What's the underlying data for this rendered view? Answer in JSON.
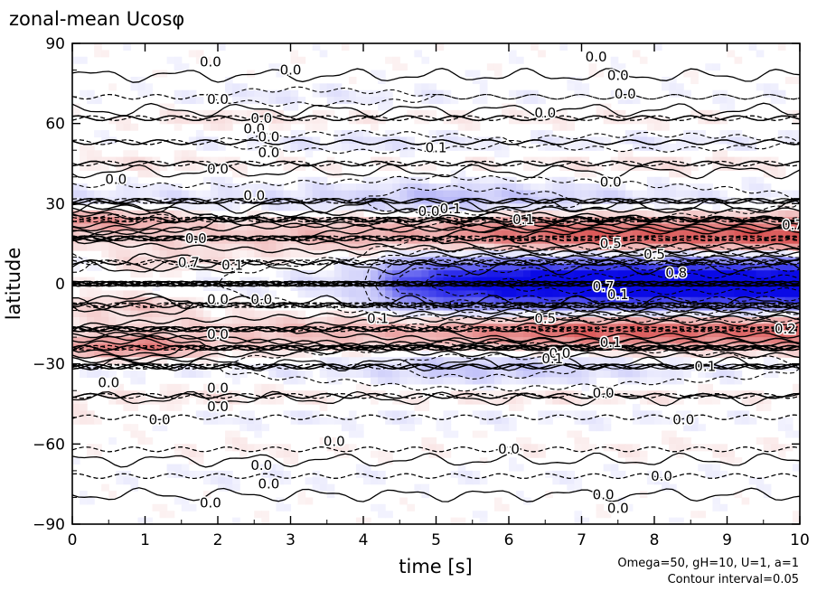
{
  "chart_data": {
    "type": "heatmap",
    "title": "zonal-mean Ucosφ",
    "xlabel": "time [s]",
    "ylabel": "latitude",
    "xlim": [
      0,
      10
    ],
    "ylim": [
      -90,
      90
    ],
    "x_ticks": [
      "0",
      "1",
      "2",
      "3",
      "4",
      "5",
      "6",
      "7",
      "8",
      "9",
      "10"
    ],
    "y_ticks": [
      "−90",
      "−60",
      "−30",
      "0",
      "30",
      "60",
      "90"
    ],
    "annotations": [
      "Omega=50, gH=10, U=1, a=1",
      "Contour interval=0.05"
    ],
    "contour_interval": 0.05,
    "colors": {
      "positive": "#d03030",
      "negative": "#1010e0",
      "zero": "#ffffff",
      "contour": "#000000"
    },
    "bands": [
      {
        "lat": 0,
        "width": 7,
        "values": [
          {
            "t": 0,
            "v": 0.02
          },
          {
            "t": 2,
            "v": -0.05
          },
          {
            "t": 3,
            "v": -0.08
          },
          {
            "t": 4,
            "v": -0.15
          },
          {
            "t": 4.5,
            "v": -0.55
          },
          {
            "t": 5,
            "v": -0.75
          },
          {
            "t": 6,
            "v": -0.92
          },
          {
            "t": 7,
            "v": -0.98
          },
          {
            "t": 8,
            "v": -1.0
          },
          {
            "t": 9,
            "v": -0.98
          },
          {
            "t": 10,
            "v": -0.95
          }
        ]
      },
      {
        "lat": 17,
        "width": 4,
        "values": [
          {
            "t": 0,
            "v": 0.1
          },
          {
            "t": 2,
            "v": 0.15
          },
          {
            "t": 3,
            "v": 0.2
          },
          {
            "t": 4,
            "v": 0.25
          },
          {
            "t": 5,
            "v": 0.3
          },
          {
            "t": 6,
            "v": 0.45
          },
          {
            "t": 7,
            "v": 0.55
          },
          {
            "t": 8,
            "v": 0.55
          },
          {
            "t": 9,
            "v": 0.55
          },
          {
            "t": 10,
            "v": 0.6
          }
        ]
      },
      {
        "lat": -17,
        "width": 4,
        "values": [
          {
            "t": 0,
            "v": 0.1
          },
          {
            "t": 2,
            "v": 0.15
          },
          {
            "t": 3,
            "v": 0.2
          },
          {
            "t": 4,
            "v": 0.25
          },
          {
            "t": 5,
            "v": 0.3
          },
          {
            "t": 6,
            "v": 0.45
          },
          {
            "t": 7,
            "v": 0.55
          },
          {
            "t": 8,
            "v": 0.55
          },
          {
            "t": 9,
            "v": 0.5
          },
          {
            "t": 10,
            "v": 0.55
          }
        ]
      },
      {
        "lat": 24,
        "width": 3,
        "values": [
          {
            "t": 0,
            "v": 0.4
          },
          {
            "t": 1,
            "v": 0.3
          },
          {
            "t": 2,
            "v": 0.1
          },
          {
            "t": 4,
            "v": 0.15
          },
          {
            "t": 6,
            "v": 0.25
          },
          {
            "t": 8,
            "v": 0.2
          },
          {
            "t": 10,
            "v": 0.2
          }
        ]
      },
      {
        "lat": -24,
        "width": 3,
        "values": [
          {
            "t": 0,
            "v": 0.3
          },
          {
            "t": 1,
            "v": 0.45
          },
          {
            "t": 2,
            "v": 0.15
          },
          {
            "t": 4,
            "v": 0.1
          },
          {
            "t": 6,
            "v": 0.15
          },
          {
            "t": 8,
            "v": 0.15
          },
          {
            "t": 10,
            "v": 0.15
          }
        ]
      },
      {
        "lat": 31,
        "width": 5,
        "values": [
          {
            "t": 0,
            "v": -0.1
          },
          {
            "t": 2,
            "v": -0.1
          },
          {
            "t": 4,
            "v": -0.15
          },
          {
            "t": 5,
            "v": -0.25
          },
          {
            "t": 6,
            "v": -0.2
          },
          {
            "t": 8,
            "v": -0.1
          },
          {
            "t": 10,
            "v": -0.05
          }
        ]
      },
      {
        "lat": -31,
        "width": 5,
        "values": [
          {
            "t": 0,
            "v": -0.05
          },
          {
            "t": 2,
            "v": -0.05
          },
          {
            "t": 4,
            "v": -0.1
          },
          {
            "t": 5,
            "v": -0.2
          },
          {
            "t": 6,
            "v": -0.2
          },
          {
            "t": 7,
            "v": -0.15
          },
          {
            "t": 8,
            "v": -0.1
          },
          {
            "t": 10,
            "v": -0.05
          }
        ]
      },
      {
        "lat": 8,
        "width": 3,
        "values": [
          {
            "t": 0,
            "v": -0.1
          },
          {
            "t": 1,
            "v": 0.15
          },
          {
            "t": 2,
            "v": 0.1
          },
          {
            "t": 3,
            "v": 0.05
          },
          {
            "t": 4,
            "v": 0.0
          },
          {
            "t": 6,
            "v": 0.0
          },
          {
            "t": 10,
            "v": 0.0
          }
        ]
      },
      {
        "lat": -8,
        "width": 3,
        "values": [
          {
            "t": 0,
            "v": 0.1
          },
          {
            "t": 1,
            "v": 0.2
          },
          {
            "t": 2,
            "v": 0.05
          },
          {
            "t": 3,
            "v": 0.05
          },
          {
            "t": 4,
            "v": 0.0
          },
          {
            "t": 6,
            "v": 0.0
          },
          {
            "t": 10,
            "v": 0.0
          }
        ]
      },
      {
        "lat": 45,
        "width": 3,
        "values": [
          {
            "t": 0,
            "v": 0.05
          },
          {
            "t": 1,
            "v": 0.1
          },
          {
            "t": 2,
            "v": 0.05
          },
          {
            "t": 4,
            "v": 0.05
          },
          {
            "t": 6,
            "v": 0.05
          },
          {
            "t": 8,
            "v": 0.1
          },
          {
            "t": 10,
            "v": 0.05
          }
        ]
      },
      {
        "lat": 53,
        "width": 3,
        "values": [
          {
            "t": 0,
            "v": 0.0
          },
          {
            "t": 2,
            "v": -0.05
          },
          {
            "t": 4,
            "v": -0.1
          },
          {
            "t": 6,
            "v": -0.05
          },
          {
            "t": 8,
            "v": -0.08
          },
          {
            "t": 10,
            "v": -0.05
          }
        ]
      },
      {
        "lat": 62,
        "width": 3,
        "values": [
          {
            "t": 0,
            "v": 0.0
          },
          {
            "t": 2,
            "v": 0.1
          },
          {
            "t": 4,
            "v": 0.05
          },
          {
            "t": 6,
            "v": 0.05
          },
          {
            "t": 8,
            "v": 0.05
          },
          {
            "t": 10,
            "v": 0.03
          }
        ]
      },
      {
        "lat": 70,
        "width": 3,
        "values": [
          {
            "t": 0,
            "v": 0.0
          },
          {
            "t": 3,
            "v": -0.08
          },
          {
            "t": 5,
            "v": -0.05
          },
          {
            "t": 7,
            "v": -0.03
          },
          {
            "t": 10,
            "v": -0.03
          }
        ]
      },
      {
        "lat": -42,
        "width": 3,
        "values": [
          {
            "t": 0,
            "v": 0.05
          },
          {
            "t": 2,
            "v": 0.1
          },
          {
            "t": 4,
            "v": 0.05
          },
          {
            "t": 6,
            "v": 0.1
          },
          {
            "t": 8,
            "v": 0.08
          },
          {
            "t": 10,
            "v": 0.05
          }
        ]
      },
      {
        "lat": -50,
        "width": 3,
        "values": [
          {
            "t": 0,
            "v": 0.05
          },
          {
            "t": 2,
            "v": -0.05
          },
          {
            "t": 4,
            "v": -0.05
          },
          {
            "t": 6,
            "v": -0.05
          },
          {
            "t": 8,
            "v": -0.05
          },
          {
            "t": 10,
            "v": -0.03
          }
        ]
      },
      {
        "lat": -62,
        "width": 3,
        "values": [
          {
            "t": 0,
            "v": 0.0
          },
          {
            "t": 2,
            "v": 0.05
          },
          {
            "t": 4,
            "v": 0.03
          },
          {
            "t": 6,
            "v": 0.03
          },
          {
            "t": 8,
            "v": 0.05
          },
          {
            "t": 10,
            "v": 0.03
          }
        ]
      },
      {
        "lat": -72,
        "width": 3,
        "values": [
          {
            "t": 0,
            "v": 0.0
          },
          {
            "t": 2,
            "v": -0.05
          },
          {
            "t": 4,
            "v": -0.03
          },
          {
            "t": 6,
            "v": -0.03
          },
          {
            "t": 10,
            "v": -0.02
          }
        ]
      }
    ],
    "contour_labels": [
      {
        "t": 1.9,
        "lat": 83,
        "text": "0.0"
      },
      {
        "t": 3.0,
        "lat": 80,
        "text": "0.0"
      },
      {
        "t": 7.2,
        "lat": 85,
        "text": "0.0"
      },
      {
        "t": 7.5,
        "lat": 78,
        "text": "0.0"
      },
      {
        "t": 7.6,
        "lat": 71,
        "text": "0.0"
      },
      {
        "t": 2.0,
        "lat": 69,
        "text": "0.0"
      },
      {
        "t": 6.5,
        "lat": 64,
        "text": "0.0"
      },
      {
        "t": 2.6,
        "lat": 62,
        "text": "0.0"
      },
      {
        "t": 2.5,
        "lat": 58,
        "text": "0.0"
      },
      {
        "t": 2.7,
        "lat": 55,
        "text": "0.0"
      },
      {
        "t": 2.7,
        "lat": 49,
        "text": "0.0"
      },
      {
        "t": 5.0,
        "lat": 51,
        "text": "0.1"
      },
      {
        "t": 2.0,
        "lat": 43,
        "text": "0.0"
      },
      {
        "t": 0.6,
        "lat": 39,
        "text": "0.0"
      },
      {
        "t": 7.4,
        "lat": 38,
        "text": "0.0"
      },
      {
        "t": 2.5,
        "lat": 33,
        "text": "0.0"
      },
      {
        "t": 4.9,
        "lat": 27,
        "text": "0.0"
      },
      {
        "t": 5.2,
        "lat": 28,
        "text": "0.1"
      },
      {
        "t": 6.2,
        "lat": 24,
        "text": "0.1"
      },
      {
        "t": 9.9,
        "lat": 22,
        "text": "0.7"
      },
      {
        "t": 1.7,
        "lat": 17,
        "text": "0.0"
      },
      {
        "t": 7.4,
        "lat": 15,
        "text": "0.5"
      },
      {
        "t": 8.0,
        "lat": 11,
        "text": "0.5"
      },
      {
        "t": 1.6,
        "lat": 8,
        "text": "0.7"
      },
      {
        "t": 2.2,
        "lat": 7,
        "text": "0.1"
      },
      {
        "t": 8.3,
        "lat": 4,
        "text": "0.8"
      },
      {
        "t": 7.3,
        "lat": -1,
        "text": "0.7"
      },
      {
        "t": 7.5,
        "lat": -4,
        "text": "0.1"
      },
      {
        "t": 2.0,
        "lat": -6,
        "text": "0.0"
      },
      {
        "t": 2.6,
        "lat": -6,
        "text": "0.0"
      },
      {
        "t": 4.2,
        "lat": -13,
        "text": "0.1"
      },
      {
        "t": 6.5,
        "lat": -13,
        "text": "0.5"
      },
      {
        "t": 2.0,
        "lat": -19,
        "text": "0.0"
      },
      {
        "t": 7.4,
        "lat": -22,
        "text": "0.1"
      },
      {
        "t": 9.8,
        "lat": -17,
        "text": "0.2"
      },
      {
        "t": 6.7,
        "lat": -26,
        "text": "0.0"
      },
      {
        "t": 6.6,
        "lat": -28,
        "text": "0.1"
      },
      {
        "t": 8.7,
        "lat": -31,
        "text": "0.1"
      },
      {
        "t": 0.5,
        "lat": -37,
        "text": "0.0"
      },
      {
        "t": 2.0,
        "lat": -39,
        "text": "0.0"
      },
      {
        "t": 7.3,
        "lat": -41,
        "text": "0.0"
      },
      {
        "t": 2.0,
        "lat": -46,
        "text": "0.0"
      },
      {
        "t": 1.2,
        "lat": -51,
        "text": "0.0"
      },
      {
        "t": 8.4,
        "lat": -51,
        "text": "0.0"
      },
      {
        "t": 3.6,
        "lat": -59,
        "text": "0.0"
      },
      {
        "t": 6.0,
        "lat": -62,
        "text": "0.0"
      },
      {
        "t": 2.6,
        "lat": -68,
        "text": "0.0"
      },
      {
        "t": 2.7,
        "lat": -75,
        "text": "0.0"
      },
      {
        "t": 8.1,
        "lat": -72,
        "text": "0.0"
      },
      {
        "t": 1.9,
        "lat": -82,
        "text": "0.0"
      },
      {
        "t": 7.3,
        "lat": -79,
        "text": "0.0"
      },
      {
        "t": 7.5,
        "lat": -84,
        "text": "0.0"
      }
    ]
  }
}
